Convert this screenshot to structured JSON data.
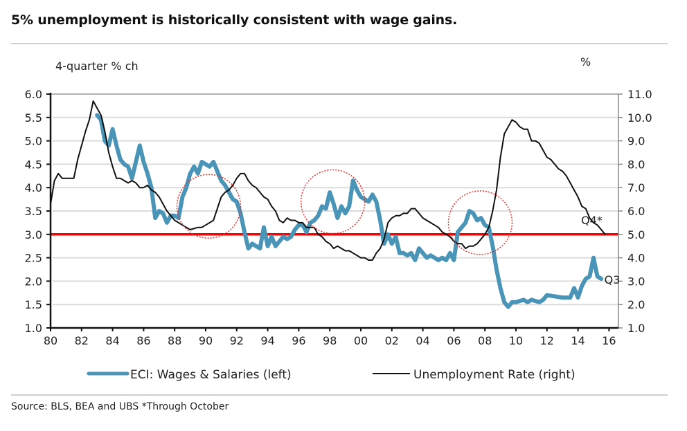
{
  "title": "5% unemployment is historically consistent with wage gains.",
  "source": "Source: BLS, BEA and UBS *Through October",
  "chart_data": {
    "type": "line",
    "title": "5% unemployment is historically consistent with wage gains.",
    "left_axis": {
      "label": "4-quarter % ch",
      "range": [
        1.0,
        6.0
      ],
      "ticks": [
        "1.0",
        "1.5",
        "2.0",
        "2.5",
        "3.0",
        "3.5",
        "4.0",
        "4.5",
        "5.0",
        "5.5",
        "6.0"
      ]
    },
    "right_axis": {
      "label": "%",
      "range": [
        1.0,
        11.0
      ],
      "ticks": [
        "1.0",
        "2.0",
        "3.0",
        "4.0",
        "5.0",
        "6.0",
        "7.0",
        "8.0",
        "9.0",
        "10.0",
        "11.0"
      ]
    },
    "x_axis": {
      "range": [
        1980,
        2017
      ],
      "ticks": [
        {
          "year": 1980,
          "label": "80"
        },
        {
          "year": 1982,
          "label": "82"
        },
        {
          "year": 1984,
          "label": "84"
        },
        {
          "year": 1986,
          "label": "86"
        },
        {
          "year": 1988,
          "label": "88"
        },
        {
          "year": 1990,
          "label": "90"
        },
        {
          "year": 1992,
          "label": "92"
        },
        {
          "year": 1994,
          "label": "94"
        },
        {
          "year": 1996,
          "label": "96"
        },
        {
          "year": 1998,
          "label": "98"
        },
        {
          "year": 2000,
          "label": "00"
        },
        {
          "year": 2002,
          "label": "02"
        },
        {
          "year": 2004,
          "label": "04"
        },
        {
          "year": 2006,
          "label": "06"
        },
        {
          "year": 2008,
          "label": "08"
        },
        {
          "year": 2010,
          "label": "10"
        },
        {
          "year": 2012,
          "label": "12"
        },
        {
          "year": 2014,
          "label": "14"
        },
        {
          "year": 2016,
          "label": "16"
        }
      ]
    },
    "grid": true,
    "legend_position": "bottom",
    "reference_line": {
      "left_value": 3.0,
      "right_value": 5.0,
      "color": "#ff0000"
    },
    "highlight_circles": [
      {
        "center_year": 1990.2,
        "center_left_value": 3.6
      },
      {
        "center_year": 1998.2,
        "center_left_value": 3.7
      },
      {
        "center_year": 2007.7,
        "center_left_value": 3.25
      }
    ],
    "annotations": [
      {
        "text": "Q4*",
        "year": 2014.2,
        "left_value": 3.22
      },
      {
        "text": "Q3",
        "year": 2015.7,
        "left_value": 1.95
      }
    ],
    "series": [
      {
        "name": "ECI: Wages & Salaries (left)",
        "axis": "left",
        "color": "#4a94b8",
        "points": [
          [
            1983.0,
            5.55
          ],
          [
            1983.25,
            5.45
          ],
          [
            1983.5,
            5.0
          ],
          [
            1983.75,
            4.9
          ],
          [
            1984.0,
            5.25
          ],
          [
            1984.25,
            4.9
          ],
          [
            1984.5,
            4.6
          ],
          [
            1984.75,
            4.5
          ],
          [
            1985.0,
            4.45
          ],
          [
            1985.25,
            4.2
          ],
          [
            1985.5,
            4.55
          ],
          [
            1985.75,
            4.9
          ],
          [
            1986.0,
            4.55
          ],
          [
            1986.25,
            4.3
          ],
          [
            1986.5,
            4.0
          ],
          [
            1986.75,
            3.35
          ],
          [
            1987.0,
            3.5
          ],
          [
            1987.25,
            3.45
          ],
          [
            1987.5,
            3.25
          ],
          [
            1987.75,
            3.4
          ],
          [
            1988.0,
            3.4
          ],
          [
            1988.25,
            3.35
          ],
          [
            1988.5,
            3.8
          ],
          [
            1988.75,
            4.0
          ],
          [
            1989.0,
            4.3
          ],
          [
            1989.25,
            4.45
          ],
          [
            1989.5,
            4.3
          ],
          [
            1989.75,
            4.55
          ],
          [
            1990.0,
            4.5
          ],
          [
            1990.25,
            4.45
          ],
          [
            1990.5,
            4.55
          ],
          [
            1990.75,
            4.35
          ],
          [
            1991.0,
            4.15
          ],
          [
            1991.25,
            4.05
          ],
          [
            1991.5,
            3.9
          ],
          [
            1991.75,
            3.75
          ],
          [
            1992.0,
            3.7
          ],
          [
            1992.25,
            3.45
          ],
          [
            1992.5,
            3.05
          ],
          [
            1992.75,
            2.7
          ],
          [
            1993.0,
            2.8
          ],
          [
            1993.25,
            2.75
          ],
          [
            1993.5,
            2.7
          ],
          [
            1993.75,
            3.15
          ],
          [
            1994.0,
            2.75
          ],
          [
            1994.25,
            2.95
          ],
          [
            1994.5,
            2.75
          ],
          [
            1994.75,
            2.85
          ],
          [
            1995.0,
            2.95
          ],
          [
            1995.25,
            2.9
          ],
          [
            1995.5,
            2.95
          ],
          [
            1995.75,
            3.1
          ],
          [
            1996.0,
            3.2
          ],
          [
            1996.25,
            3.2
          ],
          [
            1996.5,
            3.05
          ],
          [
            1996.75,
            3.25
          ],
          [
            1997.0,
            3.3
          ],
          [
            1997.25,
            3.4
          ],
          [
            1997.5,
            3.6
          ],
          [
            1997.75,
            3.55
          ],
          [
            1998.0,
            3.9
          ],
          [
            1998.25,
            3.65
          ],
          [
            1998.5,
            3.35
          ],
          [
            1998.75,
            3.6
          ],
          [
            1999.0,
            3.45
          ],
          [
            1999.25,
            3.6
          ],
          [
            1999.5,
            4.15
          ],
          [
            1999.75,
            3.95
          ],
          [
            2000.0,
            3.8
          ],
          [
            2000.25,
            3.75
          ],
          [
            2000.5,
            3.7
          ],
          [
            2000.75,
            3.85
          ],
          [
            2001.0,
            3.7
          ],
          [
            2001.25,
            3.3
          ],
          [
            2001.5,
            2.8
          ],
          [
            2001.75,
            3.0
          ],
          [
            2002.0,
            2.8
          ],
          [
            2002.25,
            2.95
          ],
          [
            2002.5,
            2.6
          ],
          [
            2002.75,
            2.6
          ],
          [
            2003.0,
            2.55
          ],
          [
            2003.25,
            2.6
          ],
          [
            2003.5,
            2.45
          ],
          [
            2003.75,
            2.7
          ],
          [
            2004.0,
            2.6
          ],
          [
            2004.25,
            2.5
          ],
          [
            2004.5,
            2.55
          ],
          [
            2004.75,
            2.5
          ],
          [
            2005.0,
            2.45
          ],
          [
            2005.25,
            2.5
          ],
          [
            2005.5,
            2.45
          ],
          [
            2005.75,
            2.6
          ],
          [
            2006.0,
            2.45
          ],
          [
            2006.25,
            3.05
          ],
          [
            2006.5,
            3.15
          ],
          [
            2006.75,
            3.25
          ],
          [
            2007.0,
            3.5
          ],
          [
            2007.25,
            3.45
          ],
          [
            2007.5,
            3.3
          ],
          [
            2007.75,
            3.35
          ],
          [
            2008.0,
            3.2
          ],
          [
            2008.25,
            3.15
          ],
          [
            2008.5,
            2.75
          ],
          [
            2008.75,
            2.25
          ],
          [
            2009.0,
            1.85
          ],
          [
            2009.25,
            1.55
          ],
          [
            2009.5,
            1.45
          ],
          [
            2009.75,
            1.55
          ],
          [
            2010.0,
            1.55
          ],
          [
            2010.5,
            1.6
          ],
          [
            2010.75,
            1.55
          ],
          [
            2011.0,
            1.6
          ],
          [
            2011.5,
            1.55
          ],
          [
            2011.75,
            1.6
          ],
          [
            2012.0,
            1.7
          ],
          [
            2013.0,
            1.65
          ],
          [
            2013.5,
            1.65
          ],
          [
            2013.75,
            1.85
          ],
          [
            2014.0,
            1.65
          ],
          [
            2014.25,
            1.9
          ],
          [
            2014.5,
            2.05
          ],
          [
            2014.75,
            2.1
          ],
          [
            2015.0,
            2.5
          ],
          [
            2015.25,
            2.1
          ],
          [
            2015.5,
            2.05
          ]
        ]
      },
      {
        "name": "Unemployment Rate (right)",
        "axis": "right",
        "color": "#111111",
        "points": [
          [
            1980.0,
            6.3
          ],
          [
            1980.25,
            7.3
          ],
          [
            1980.5,
            7.6
          ],
          [
            1980.75,
            7.4
          ],
          [
            1981.0,
            7.4
          ],
          [
            1981.25,
            7.4
          ],
          [
            1981.5,
            7.4
          ],
          [
            1981.75,
            8.2
          ],
          [
            1982.0,
            8.8
          ],
          [
            1982.25,
            9.4
          ],
          [
            1982.5,
            9.9
          ],
          [
            1982.75,
            10.7
          ],
          [
            1983.0,
            10.4
          ],
          [
            1983.25,
            10.1
          ],
          [
            1983.5,
            9.4
          ],
          [
            1983.75,
            8.5
          ],
          [
            1984.0,
            7.9
          ],
          [
            1984.25,
            7.4
          ],
          [
            1984.5,
            7.4
          ],
          [
            1984.75,
            7.3
          ],
          [
            1985.0,
            7.2
          ],
          [
            1985.25,
            7.3
          ],
          [
            1985.5,
            7.2
          ],
          [
            1985.75,
            7.0
          ],
          [
            1986.0,
            7.0
          ],
          [
            1986.25,
            7.1
          ],
          [
            1986.5,
            6.9
          ],
          [
            1986.75,
            6.8
          ],
          [
            1987.0,
            6.6
          ],
          [
            1987.25,
            6.3
          ],
          [
            1987.5,
            6.0
          ],
          [
            1987.75,
            5.8
          ],
          [
            1988.0,
            5.6
          ],
          [
            1988.25,
            5.5
          ],
          [
            1988.5,
            5.4
          ],
          [
            1988.75,
            5.3
          ],
          [
            1989.0,
            5.2
          ],
          [
            1989.5,
            5.3
          ],
          [
            1989.75,
            5.3
          ],
          [
            1990.0,
            5.4
          ],
          [
            1990.5,
            5.6
          ],
          [
            1990.75,
            6.1
          ],
          [
            1991.0,
            6.6
          ],
          [
            1991.25,
            6.8
          ],
          [
            1991.5,
            6.9
          ],
          [
            1991.75,
            7.1
          ],
          [
            1992.0,
            7.4
          ],
          [
            1992.25,
            7.6
          ],
          [
            1992.5,
            7.6
          ],
          [
            1992.75,
            7.3
          ],
          [
            1993.0,
            7.1
          ],
          [
            1993.25,
            7.0
          ],
          [
            1993.5,
            6.8
          ],
          [
            1993.75,
            6.6
          ],
          [
            1994.0,
            6.5
          ],
          [
            1994.25,
            6.2
          ],
          [
            1994.5,
            6.0
          ],
          [
            1994.75,
            5.6
          ],
          [
            1995.0,
            5.5
          ],
          [
            1995.25,
            5.7
          ],
          [
            1995.5,
            5.6
          ],
          [
            1995.75,
            5.6
          ],
          [
            1996.0,
            5.5
          ],
          [
            1996.25,
            5.5
          ],
          [
            1996.5,
            5.3
          ],
          [
            1996.75,
            5.3
          ],
          [
            1997.0,
            5.3
          ],
          [
            1997.25,
            5.0
          ],
          [
            1997.5,
            4.9
          ],
          [
            1997.75,
            4.7
          ],
          [
            1998.0,
            4.6
          ],
          [
            1998.25,
            4.4
          ],
          [
            1998.5,
            4.5
          ],
          [
            1998.75,
            4.4
          ],
          [
            1999.0,
            4.3
          ],
          [
            1999.25,
            4.3
          ],
          [
            1999.5,
            4.2
          ],
          [
            1999.75,
            4.1
          ],
          [
            2000.0,
            4.0
          ],
          [
            2000.25,
            4.0
          ],
          [
            2000.5,
            3.9
          ],
          [
            2000.75,
            3.9
          ],
          [
            2001.0,
            4.2
          ],
          [
            2001.25,
            4.4
          ],
          [
            2001.5,
            4.8
          ],
          [
            2001.75,
            5.5
          ],
          [
            2002.0,
            5.7
          ],
          [
            2002.25,
            5.8
          ],
          [
            2002.5,
            5.8
          ],
          [
            2002.75,
            5.9
          ],
          [
            2003.0,
            5.9
          ],
          [
            2003.25,
            6.1
          ],
          [
            2003.5,
            6.1
          ],
          [
            2003.75,
            5.9
          ],
          [
            2004.0,
            5.7
          ],
          [
            2004.25,
            5.6
          ],
          [
            2004.5,
            5.5
          ],
          [
            2004.75,
            5.4
          ],
          [
            2005.0,
            5.3
          ],
          [
            2005.25,
            5.1
          ],
          [
            2005.5,
            5.0
          ],
          [
            2005.75,
            4.9
          ],
          [
            2006.0,
            4.7
          ],
          [
            2006.25,
            4.6
          ],
          [
            2006.5,
            4.6
          ],
          [
            2006.75,
            4.4
          ],
          [
            2007.0,
            4.5
          ],
          [
            2007.25,
            4.5
          ],
          [
            2007.5,
            4.6
          ],
          [
            2007.75,
            4.8
          ],
          [
            2008.0,
            5.0
          ],
          [
            2008.25,
            5.3
          ],
          [
            2008.5,
            6.0
          ],
          [
            2008.75,
            6.9
          ],
          [
            2009.0,
            8.3
          ],
          [
            2009.25,
            9.3
          ],
          [
            2009.5,
            9.6
          ],
          [
            2009.75,
            9.9
          ],
          [
            2010.0,
            9.8
          ],
          [
            2010.25,
            9.6
          ],
          [
            2010.5,
            9.5
          ],
          [
            2010.75,
            9.5
          ],
          [
            2011.0,
            9.0
          ],
          [
            2011.25,
            9.0
          ],
          [
            2011.5,
            8.9
          ],
          [
            2011.75,
            8.6
          ],
          [
            2012.0,
            8.3
          ],
          [
            2012.25,
            8.2
          ],
          [
            2012.5,
            8.0
          ],
          [
            2012.75,
            7.8
          ],
          [
            2013.0,
            7.7
          ],
          [
            2013.25,
            7.5
          ],
          [
            2013.5,
            7.2
          ],
          [
            2013.75,
            6.9
          ],
          [
            2014.0,
            6.6
          ],
          [
            2014.25,
            6.2
          ],
          [
            2014.5,
            6.1
          ],
          [
            2014.75,
            5.7
          ],
          [
            2015.0,
            5.5
          ],
          [
            2015.25,
            5.4
          ],
          [
            2015.5,
            5.2
          ],
          [
            2015.75,
            5.0
          ]
        ]
      }
    ]
  }
}
